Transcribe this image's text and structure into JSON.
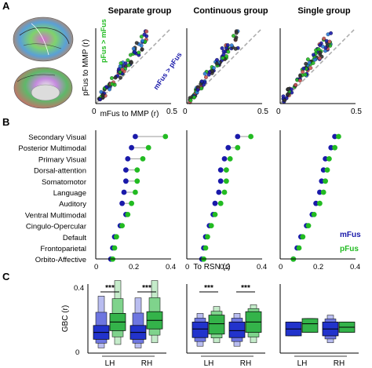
{
  "panel_letters": [
    "A",
    "B",
    "C"
  ],
  "panelA": {
    "columns": [
      "Separate group",
      "Continuous group",
      "Single group"
    ],
    "ylabel": "pFus to MMP (r)",
    "xlabel": "mFus to MMP (r)",
    "tick_zero": "0",
    "tick_max": "0.5",
    "annot_top": "pFus > mFus",
    "annot_bottom": "mFus > pFus",
    "colors": {
      "pFus": "#22bb22",
      "mFus": "#1a1aaa",
      "diag": "#aaaaaa"
    }
  },
  "panelB": {
    "networks": [
      "Secondary Visual",
      "Posterior Multimodal",
      "Primary Visual",
      "Dorsal-attention",
      "Somatomotor",
      "Language",
      "Auditory",
      "Ventral Multimodal",
      "Cingulo-Opercular",
      "Default",
      "Frontoparietal",
      "Orbito-Affective"
    ],
    "xlabel": "To RSN (r)",
    "ticks": [
      "0",
      "0.2",
      "0.4"
    ],
    "legend": {
      "mfus": "mFus",
      "pfus": "pFus"
    }
  },
  "panelC": {
    "ylabel": "GBC (r)",
    "tick_zero": "0",
    "tick_max": "0.4",
    "hemis": [
      "LH",
      "RH"
    ],
    "sig": "***"
  },
  "chart_data": [
    {
      "type": "scatter",
      "title": "Separate group",
      "xlabel": "mFus to MMP (r)",
      "ylabel": "pFus to MMP (r)",
      "xlim": [
        0,
        0.5
      ],
      "ylim": [
        0,
        0.5
      ],
      "annotations": [
        "pFus > mFus",
        "mFus > pFus"
      ]
    },
    {
      "type": "scatter",
      "title": "Continuous group",
      "xlim": [
        0,
        0.5
      ],
      "ylim": [
        0,
        0.5
      ]
    },
    {
      "type": "scatter",
      "title": "Single group",
      "xlim": [
        0,
        0.5
      ],
      "ylim": [
        0,
        0.5
      ]
    },
    {
      "type": "dot",
      "title": "Separate group",
      "xlabel": "To RSN (r)",
      "xlim": [
        0,
        0.4
      ],
      "categories": [
        "Secondary Visual",
        "Posterior Multimodal",
        "Primary Visual",
        "Dorsal-attention",
        "Somatomotor",
        "Language",
        "Auditory",
        "Ventral Multimodal",
        "Cingulo-Opercular",
        "Default",
        "Frontoparietal",
        "Orbito-Affective"
      ],
      "series": [
        {
          "name": "mFus",
          "values": [
            0.21,
            0.19,
            0.17,
            0.16,
            0.16,
            0.15,
            0.14,
            0.16,
            0.13,
            0.1,
            0.09,
            0.08
          ]
        },
        {
          "name": "pFus",
          "values": [
            0.37,
            0.28,
            0.25,
            0.22,
            0.22,
            0.21,
            0.19,
            0.17,
            0.14,
            0.11,
            0.1,
            0.09
          ]
        }
      ]
    },
    {
      "type": "dot",
      "title": "Continuous group",
      "xlabel": "To RSN (r)",
      "xlim": [
        0,
        0.4
      ],
      "categories": [
        "Secondary Visual",
        "Posterior Multimodal",
        "Primary Visual",
        "Dorsal-attention",
        "Somatomotor",
        "Language",
        "Auditory",
        "Ventral Multimodal",
        "Cingulo-Opercular",
        "Default",
        "Frontoparietal",
        "Orbito-Affective"
      ],
      "series": [
        {
          "name": "mFus",
          "values": [
            0.27,
            0.22,
            0.2,
            0.18,
            0.18,
            0.17,
            0.15,
            0.14,
            0.12,
            0.1,
            0.09,
            0.08
          ]
        },
        {
          "name": "pFus",
          "values": [
            0.34,
            0.27,
            0.23,
            0.21,
            0.21,
            0.2,
            0.18,
            0.15,
            0.13,
            0.11,
            0.1,
            0.09
          ]
        }
      ]
    },
    {
      "type": "dot",
      "title": "Single group",
      "xlabel": "To RSN (r)",
      "xlim": [
        0,
        0.4
      ],
      "categories": [
        "Secondary Visual",
        "Posterior Multimodal",
        "Primary Visual",
        "Dorsal-attention",
        "Somatomotor",
        "Language",
        "Auditory",
        "Ventral Multimodal",
        "Cingulo-Opercular",
        "Default",
        "Frontoparietal",
        "Orbito-Affective"
      ],
      "series": [
        {
          "name": "mFus",
          "values": [
            0.29,
            0.27,
            0.24,
            0.23,
            0.22,
            0.21,
            0.19,
            0.17,
            0.14,
            0.11,
            0.09,
            0.07
          ]
        },
        {
          "name": "pFus",
          "values": [
            0.31,
            0.29,
            0.26,
            0.25,
            0.24,
            0.23,
            0.21,
            0.18,
            0.15,
            0.12,
            0.1,
            0.07
          ]
        }
      ]
    },
    {
      "type": "boxen",
      "title": "Separate group",
      "ylabel": "GBC (r)",
      "ylim": [
        0,
        0.4
      ],
      "categories": [
        "LH",
        "RH"
      ],
      "series": [
        {
          "name": "mFus",
          "median": [
            0.12,
            0.12
          ],
          "q1": [
            0.08,
            0.08
          ],
          "q3": [
            0.16,
            0.16
          ],
          "min": [
            0.03,
            0.03
          ],
          "max": [
            0.33,
            0.32
          ]
        },
        {
          "name": "pFus",
          "median": [
            0.18,
            0.19
          ],
          "q1": [
            0.13,
            0.14
          ],
          "q3": [
            0.23,
            0.24
          ],
          "min": [
            0.05,
            0.06
          ],
          "max": [
            0.42,
            0.42
          ]
        }
      ],
      "annotations": [
        "***",
        "***"
      ]
    },
    {
      "type": "boxen",
      "title": "Continuous group",
      "ylim": [
        0,
        0.4
      ],
      "categories": [
        "LH",
        "RH"
      ],
      "series": [
        {
          "name": "mFus",
          "median": [
            0.14,
            0.13
          ],
          "q1": [
            0.09,
            0.09
          ],
          "q3": [
            0.18,
            0.18
          ],
          "min": [
            0.04,
            0.04
          ],
          "max": [
            0.23,
            0.23
          ]
        },
        {
          "name": "pFus",
          "median": [
            0.17,
            0.18
          ],
          "q1": [
            0.11,
            0.12
          ],
          "q3": [
            0.22,
            0.24
          ],
          "min": [
            0.06,
            0.06
          ],
          "max": [
            0.27,
            0.28
          ]
        }
      ],
      "annotations": [
        "***",
        "***"
      ]
    },
    {
      "type": "boxen",
      "title": "Single group",
      "ylim": [
        0,
        0.4
      ],
      "categories": [
        "LH",
        "RH"
      ],
      "series": [
        {
          "name": "mFus",
          "median": [
            0.14,
            0.14
          ],
          "q1": [
            0.1,
            0.1
          ],
          "q3": [
            0.18,
            0.18
          ],
          "min": [
            0.1,
            0.06
          ],
          "max": [
            0.18,
            0.22
          ]
        },
        {
          "name": "pFus",
          "median": [
            0.17,
            0.15
          ],
          "q1": [
            0.12,
            0.12
          ],
          "q3": [
            0.2,
            0.18
          ],
          "min": [
            0.12,
            0.12
          ],
          "max": [
            0.2,
            0.18
          ]
        }
      ]
    }
  ]
}
